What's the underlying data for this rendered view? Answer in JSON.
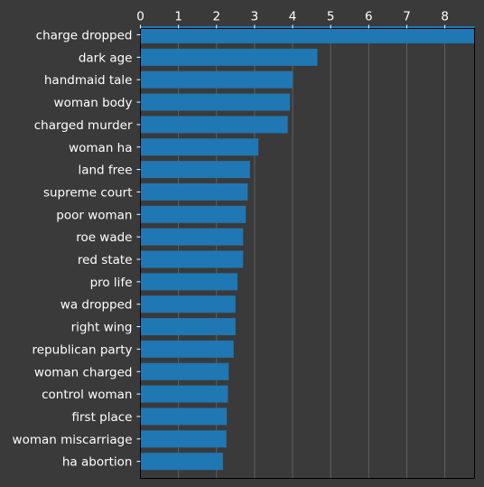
{
  "chart_data": {
    "type": "bar",
    "orientation": "horizontal",
    "categories": [
      "charge dropped",
      "dark age",
      "handmaid tale",
      "woman body",
      "charged murder",
      "woman ha",
      "land free",
      "supreme court",
      "poor woman",
      "roe wade",
      "red state",
      "pro life",
      "wa dropped",
      "right wing",
      "republican party",
      "woman charged",
      "control woman",
      "first place",
      "woman miscarriage",
      "ha abortion"
    ],
    "values": [
      8.8,
      4.65,
      4.0,
      3.93,
      3.87,
      3.1,
      2.88,
      2.82,
      2.77,
      2.7,
      2.7,
      2.55,
      2.5,
      2.5,
      2.45,
      2.32,
      2.3,
      2.27,
      2.26,
      2.17
    ],
    "xticks": [
      "0",
      "1",
      "2",
      "3",
      "4",
      "5",
      "6",
      "7",
      "8"
    ],
    "xlim": [
      0,
      8.78
    ],
    "x_axis_position": "top",
    "grid": "vertical",
    "colors": {
      "bar": "#1f77b4",
      "background": "#3a3a3a",
      "text": "#ffffff",
      "grid": "#5f5f5f"
    }
  }
}
